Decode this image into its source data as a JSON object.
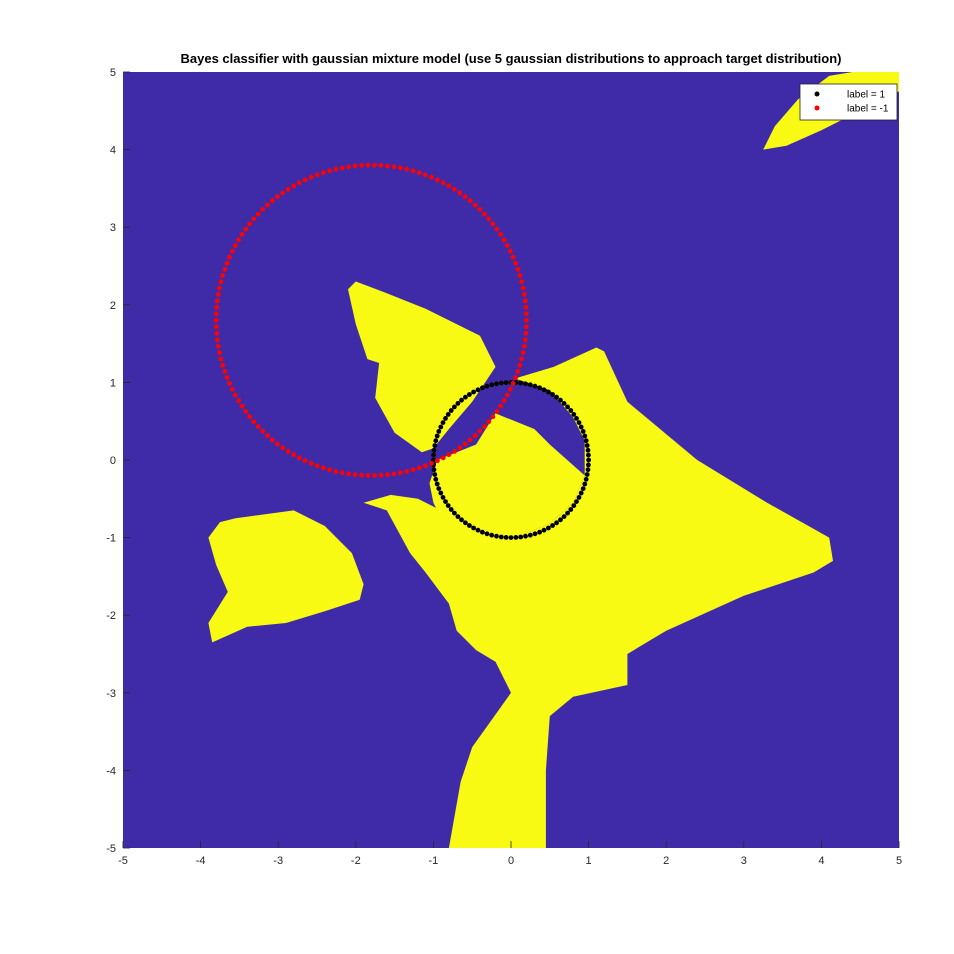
{
  "chart_data": {
    "type": "scatter",
    "title": "Bayes classifier with gaussian mixture model (use 5 gaussian distributions to approach target distribution)",
    "xlabel": "",
    "ylabel": "",
    "xlim": [
      -5,
      5
    ],
    "ylim": [
      -5,
      5
    ],
    "xticks": [
      -5,
      -4,
      -3,
      -2,
      -1,
      0,
      1,
      2,
      3,
      4,
      5
    ],
    "yticks": [
      -5,
      -4,
      -3,
      -2,
      -1,
      0,
      1,
      2,
      3,
      4,
      5
    ],
    "grid": false,
    "legend_position": "top-right",
    "background": {
      "description": "decision regions",
      "class_neg_color": "#3f2ba8",
      "class_pos_color": "#f8fa14",
      "regions_pos": [
        [
          [
            -2.1,
            2.2
          ],
          [
            -2.0,
            2.3
          ],
          [
            -1.6,
            2.15
          ],
          [
            -1.1,
            1.95
          ],
          [
            -0.4,
            1.6
          ],
          [
            -0.2,
            1.2
          ],
          [
            -0.5,
            0.75
          ],
          [
            -0.8,
            0.4
          ],
          [
            -1.0,
            0.15
          ],
          [
            -1.15,
            0.1
          ],
          [
            -1.5,
            0.35
          ],
          [
            -1.75,
            0.8
          ],
          [
            -1.7,
            1.25
          ],
          [
            -1.85,
            1.3
          ],
          [
            -2.0,
            1.75
          ]
        ],
        [
          [
            -0.95,
            0.0
          ],
          [
            -1.05,
            -0.3
          ],
          [
            -1.0,
            -0.55
          ],
          [
            -0.9,
            -0.75
          ],
          [
            -0.65,
            -0.9
          ],
          [
            -0.3,
            -0.98
          ],
          [
            0.1,
            -0.98
          ],
          [
            0.5,
            -0.82
          ],
          [
            0.8,
            -0.55
          ],
          [
            0.95,
            -0.2
          ],
          [
            0.5,
            0.2
          ],
          [
            0.3,
            0.4
          ],
          [
            -0.2,
            0.6
          ],
          [
            -0.45,
            0.2
          ]
        ],
        [
          [
            0.05,
            1.05
          ],
          [
            0.55,
            1.2
          ],
          [
            1.1,
            1.45
          ],
          [
            1.2,
            1.4
          ],
          [
            1.5,
            0.75
          ],
          [
            2.4,
            0.0
          ],
          [
            3.3,
            -0.55
          ],
          [
            4.1,
            -1.0
          ],
          [
            4.15,
            -1.3
          ],
          [
            3.9,
            -1.45
          ],
          [
            3.0,
            -1.75
          ],
          [
            2.0,
            -2.2
          ],
          [
            1.5,
            -2.5
          ],
          [
            1.5,
            -2.9
          ],
          [
            0.8,
            -3.05
          ],
          [
            0.5,
            -3.3
          ],
          [
            0.45,
            -4.0
          ],
          [
            0.45,
            -5.0
          ],
          [
            -0.8,
            -5.0
          ],
          [
            -0.65,
            -4.15
          ],
          [
            -0.5,
            -3.7
          ],
          [
            0.0,
            -3.0
          ],
          [
            -0.2,
            -2.6
          ],
          [
            -0.45,
            -2.45
          ],
          [
            -0.7,
            -2.2
          ],
          [
            -0.8,
            -1.85
          ],
          [
            -1.1,
            -1.45
          ],
          [
            -1.3,
            -1.2
          ],
          [
            -1.6,
            -0.65
          ],
          [
            -1.9,
            -0.55
          ],
          [
            -1.55,
            -0.45
          ],
          [
            -1.2,
            -0.5
          ],
          [
            -0.7,
            -0.75
          ],
          [
            -0.3,
            -0.98
          ],
          [
            0.1,
            -0.98
          ],
          [
            0.5,
            -0.82
          ],
          [
            0.8,
            -0.55
          ],
          [
            0.95,
            -0.2
          ],
          [
            0.95,
            0.25
          ],
          [
            0.8,
            0.55
          ],
          [
            0.5,
            0.9
          ]
        ],
        [
          [
            -3.75,
            -0.8
          ],
          [
            -3.55,
            -0.75
          ],
          [
            -2.8,
            -0.65
          ],
          [
            -2.4,
            -0.85
          ],
          [
            -2.05,
            -1.2
          ],
          [
            -1.9,
            -1.6
          ],
          [
            -1.95,
            -1.8
          ],
          [
            -2.4,
            -1.95
          ],
          [
            -2.9,
            -2.1
          ],
          [
            -3.4,
            -2.15
          ],
          [
            -3.85,
            -2.35
          ],
          [
            -3.9,
            -2.1
          ],
          [
            -3.65,
            -1.7
          ],
          [
            -3.8,
            -1.35
          ],
          [
            -3.9,
            -1.0
          ]
        ],
        [
          [
            3.25,
            4.0
          ],
          [
            3.4,
            4.3
          ],
          [
            3.7,
            4.65
          ],
          [
            4.1,
            4.95
          ],
          [
            4.4,
            5.0
          ],
          [
            5.0,
            5.0
          ],
          [
            5.0,
            4.75
          ],
          [
            4.6,
            4.55
          ],
          [
            4.0,
            4.25
          ],
          [
            3.55,
            4.05
          ]
        ]
      ]
    },
    "series": [
      {
        "name": "label = 1",
        "color": "#000000",
        "marker": "dot",
        "shape": "circle",
        "center": [
          0,
          0
        ],
        "radius": 1,
        "n_points": 100
      },
      {
        "name": "label = -1",
        "color": "#ff0000",
        "marker": "dot",
        "shape": "circle",
        "center": [
          -1.8,
          1.8
        ],
        "radius": 2,
        "n_points": 150
      }
    ]
  }
}
